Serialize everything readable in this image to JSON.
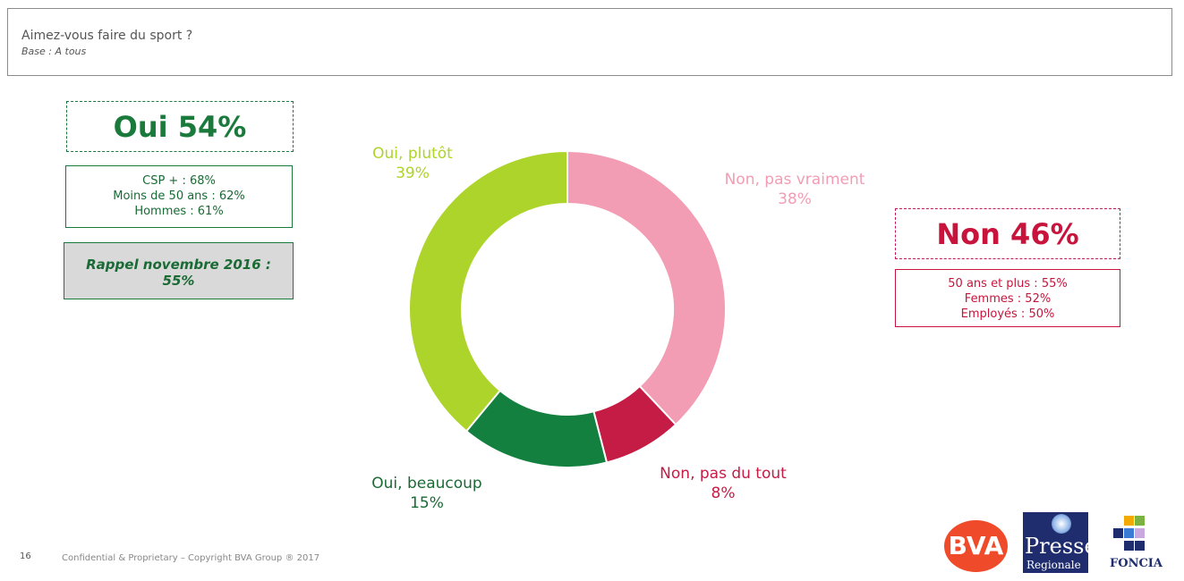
{
  "header": {
    "question": "Aimez-vous faire du sport ?",
    "base": "Base : A tous"
  },
  "oui_panel": {
    "big_label": "Oui 54%",
    "details": [
      "CSP + : 68%",
      "Moins de 50 ans : 62%",
      "Hommes : 61%"
    ],
    "rappel_line1": "Rappel novembre 2016 :",
    "rappel_line2": "55%"
  },
  "non_panel": {
    "big_label": "Non 46%",
    "details": [
      "50 ans et plus : 55%",
      "Femmes : 52%",
      "Employés : 50%"
    ]
  },
  "colors": {
    "oui_plutot": "#add42b",
    "oui_beaucoup": "#138040",
    "non_pas_du_tout": "#c41c44",
    "non_pas_vraiment": "#f29db4",
    "oui_text": "#1a7a3c",
    "non_text": "#c8143c"
  },
  "chart_data": {
    "type": "pie",
    "donut": true,
    "title": "",
    "categories": [
      "Non, pas vraiment",
      "Non, pas du tout",
      "Oui, beaucoup",
      "Oui, plutôt"
    ],
    "values": [
      38,
      8,
      15,
      39
    ],
    "value_labels": [
      "38%",
      "8%",
      "15%",
      "39%"
    ],
    "slice_colors": [
      "#f29db4",
      "#c41c44",
      "#138040",
      "#add42b"
    ],
    "label_colors": [
      "#f29db4",
      "#c41c44",
      "#1a6a35",
      "#add42b"
    ]
  },
  "footer": {
    "page_number": "16",
    "copyright": "Confidential & Proprietary – Copyright BVA Group ® 2017"
  },
  "logos": {
    "bva": "BVA",
    "presse_line1": "Presse",
    "presse_line2": "Regionale",
    "foncia": "FONCIA"
  }
}
